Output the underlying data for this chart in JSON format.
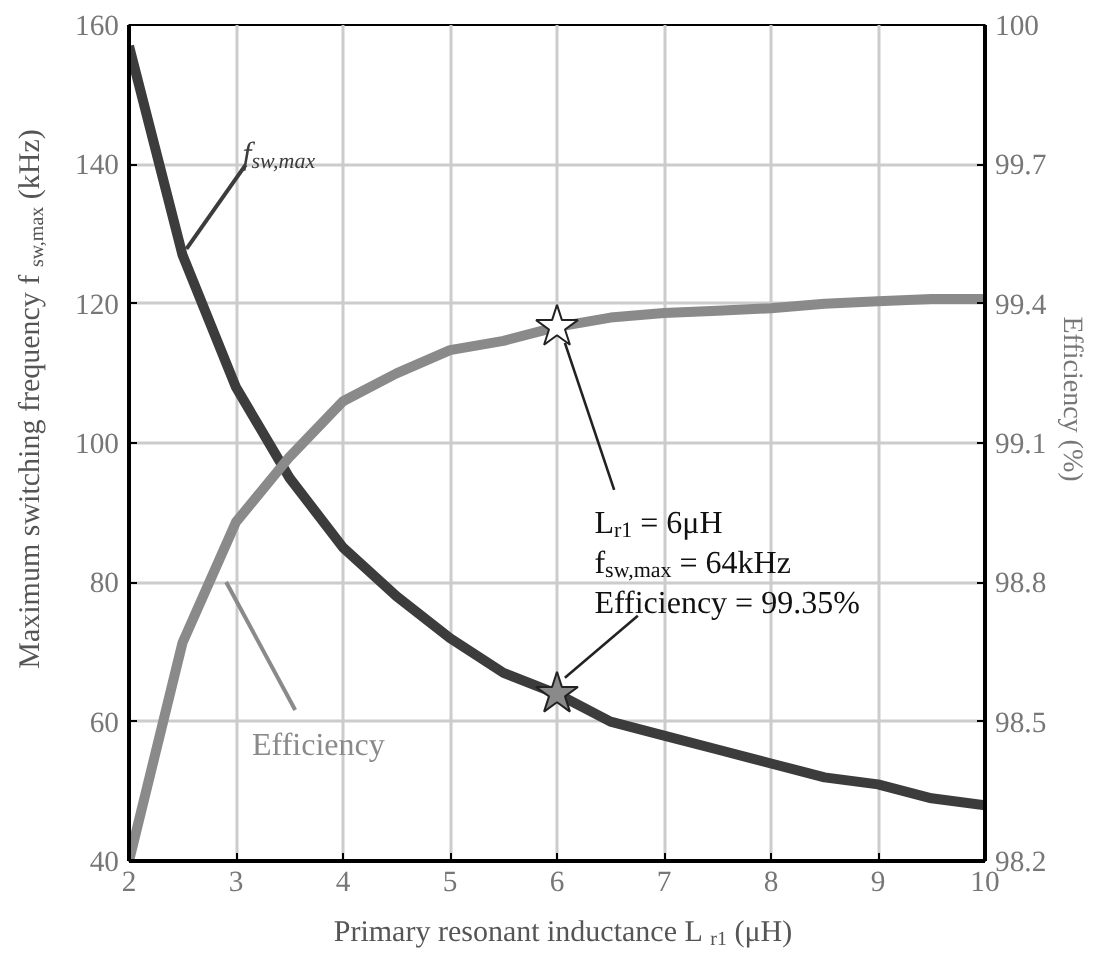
{
  "chart_data": {
    "type": "line",
    "xlabel": "Primary resonant inductance  L$_{r1}$ (μH)",
    "ylabel": "Maximum switching frequency  f$_{sw,max}$ (kHz)",
    "y2label": "Efficiency (%)",
    "x": [
      2,
      2.5,
      3,
      3.5,
      4,
      4.5,
      5,
      5.5,
      6,
      6.5,
      7,
      7.5,
      8,
      8.5,
      9,
      9.5,
      10
    ],
    "series": [
      {
        "name": "f$_{sw,max}$",
        "color": "#3c3c3c",
        "values": [
          157,
          127,
          108,
          95,
          85,
          78,
          72,
          67,
          64,
          60,
          58,
          56,
          54,
          52,
          51,
          49,
          48
        ]
      },
      {
        "name": "Efficiency",
        "color": "#8a8a8a",
        "axis": "y2",
        "values": [
          98.2,
          98.67,
          98.93,
          99.07,
          99.19,
          99.25,
          99.3,
          99.32,
          99.35,
          99.37,
          99.38,
          99.385,
          99.39,
          99.4,
          99.405,
          99.41,
          99.41
        ]
      },
      {
        "type": "scatter",
        "marker": "star",
        "color": "#8a8a8a",
        "x": [
          6
        ],
        "values": [
          64
        ]
      },
      {
        "type": "scatter",
        "marker": "star",
        "color": "#ffffff",
        "axis": "y2",
        "x": [
          6
        ],
        "values": [
          99.35
        ]
      }
    ],
    "annotations": [
      {
        "text": "L$_{r1}$ = 6μH\nf$_{sw,max}$ = 64kHz\nEfficiency = 99.35%",
        "x": 6,
        "y": 64
      }
    ],
    "xlim": [
      2,
      10
    ],
    "xticks": [
      2,
      3,
      4,
      5,
      6,
      7,
      8,
      9,
      10
    ],
    "ylim": [
      40,
      160
    ],
    "yticks": [
      40,
      60,
      80,
      100,
      120,
      140,
      160
    ],
    "y2lim": [
      98.2,
      100
    ],
    "y2ticks": [
      98.2,
      98.5,
      98.8,
      99.1,
      99.4,
      99.7,
      100
    ],
    "grid": true
  }
}
